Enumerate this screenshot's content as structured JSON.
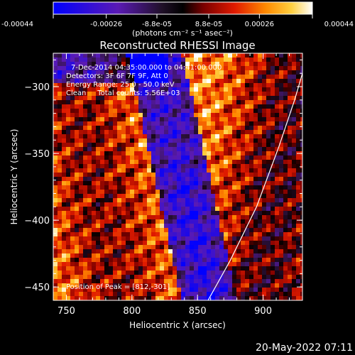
{
  "chart_data": {
    "type": "heatmap",
    "title": "Reconstructed RHESSI Image",
    "xlabel": "Heliocentric X (arcsec)",
    "ylabel": "Heliocentric Y (arcsec)",
    "xlim": [
      740,
      930
    ],
    "ylim": [
      -460,
      -275
    ],
    "x_ticks": [
      750,
      800,
      850,
      900
    ],
    "y_ticks": [
      -300,
      -350,
      -400,
      -450
    ],
    "colorbar": {
      "min": -0.00044,
      "max": 0.00044,
      "tick_labels": [
        "-0.00044",
        "-0.00026",
        "-8.8e-05",
        "8.8e-05",
        "0.00026",
        "0.00044"
      ],
      "unit_label": "(photons cm⁻² s⁻¹ asec⁻²)"
    },
    "annotations": [
      "7-Dec-2014 04:35:00.000 to 04:41:00.000",
      "Detectors: 3F 6F 7F 9F, Att 0",
      "Energy Range: 25.0 - 50.0 keV",
      "Clean     Total counts: 5.56E+03"
    ],
    "peak_label": "Position of Peak = [812,-301]",
    "limb_curve": [
      [
        858,
        -460
      ],
      [
        875,
        -430
      ],
      [
        895,
        -390
      ],
      [
        912,
        -345
      ],
      [
        924,
        -310
      ],
      [
        930,
        -290
      ]
    ],
    "footer_date": "20-May-2022 07:11"
  }
}
